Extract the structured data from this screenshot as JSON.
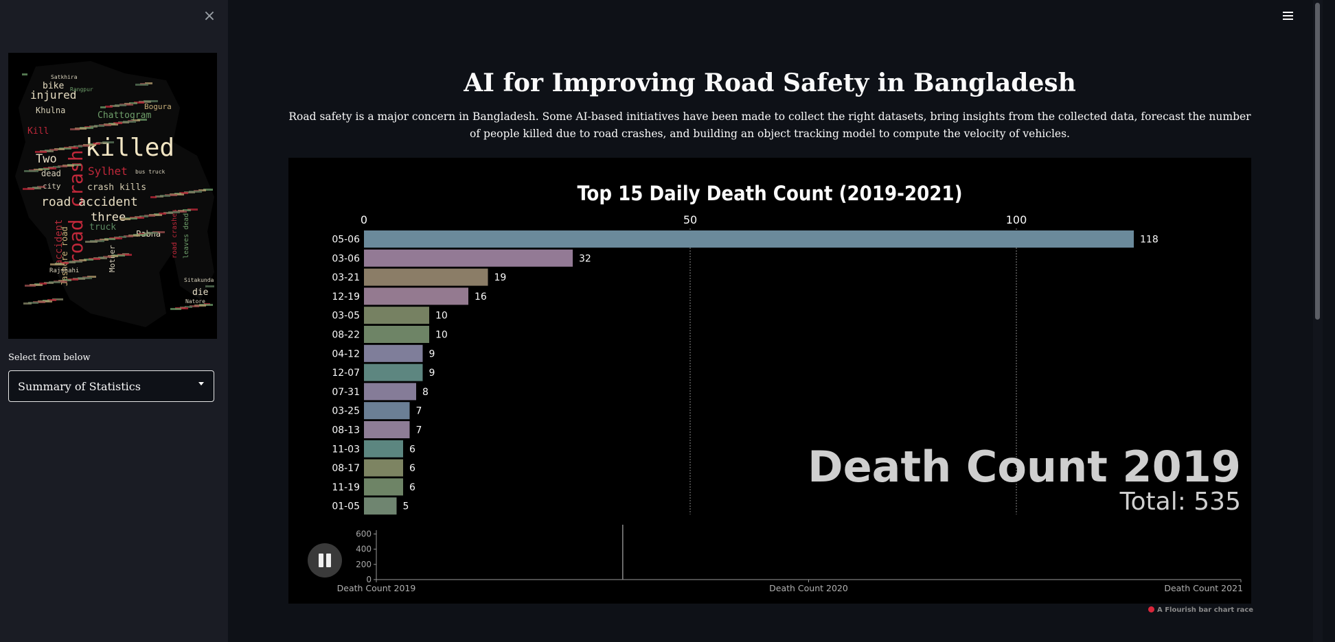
{
  "sidebar": {
    "close_label": "×",
    "wordcloud_words": [
      "killed",
      "road crash",
      "road accident",
      "Two",
      "three",
      "injured",
      "Khulna",
      "Sylhet",
      "crash kills",
      "Chattogram",
      "bike",
      "dead",
      "accident",
      "Jashore road",
      "Pabna",
      "truck",
      "Mother",
      "die",
      "Sitakunda",
      "Natore",
      "Bogura",
      "city",
      "leaves dead",
      "Rajshahi",
      "Satkhira",
      "Rangpur",
      "Kill",
      "bus truck",
      "road crashes"
    ],
    "select_label": "Select from below",
    "select_value": "Summary of Statistics"
  },
  "main": {
    "title": "AI for Improving Road Safety in Bangladesh",
    "intro": "Road safety is a major concern in Bangladesh. Some AI-based initiatives have been made to collect the right datasets, bring insights from the collected data, forecast the number of people killed due to road crashes, and building an object tracking model to compute the velocity of vehicles.",
    "credit": "A Flourish bar chart race"
  },
  "chart_data": {
    "type": "bar",
    "title": "Top 15 Daily Death Count (2019-2021)",
    "orientation": "horizontal",
    "categories": [
      "05-06",
      "03-06",
      "03-21",
      "12-19",
      "03-05",
      "08-22",
      "04-12",
      "12-07",
      "07-31",
      "03-25",
      "08-13",
      "11-03",
      "08-17",
      "11-19",
      "01-05"
    ],
    "values": [
      118,
      32,
      19,
      16,
      10,
      10,
      9,
      9,
      8,
      7,
      7,
      6,
      6,
      6,
      5
    ],
    "colors": [
      "#6b8a9b",
      "#937a95",
      "#8b7d67",
      "#947a90",
      "#768162",
      "#6e8466",
      "#7f7e9a",
      "#5d8680",
      "#857c98",
      "#6b7f95",
      "#8e7d96",
      "#5c8680",
      "#7d8462",
      "#6e8466",
      "#6f8570"
    ],
    "xlim": [
      0,
      120
    ],
    "xticks": [
      0,
      50,
      100
    ],
    "grid": true,
    "overlay_title": "Death Count 2019",
    "overlay_total": "Total: 535",
    "timeline": {
      "yticks": [
        0,
        200,
        400,
        600
      ],
      "ylim": [
        0,
        650
      ],
      "labels": [
        "Death Count 2019",
        "Death Count 2020",
        "Death Count 2021"
      ]
    }
  }
}
